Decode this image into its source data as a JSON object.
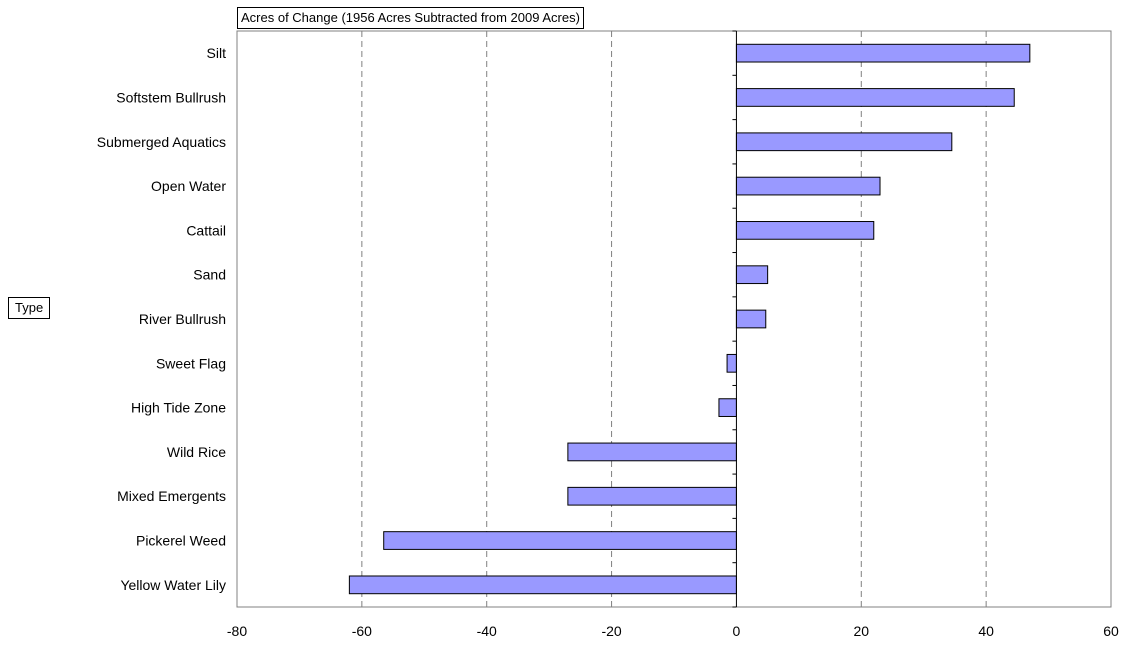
{
  "chart_data": {
    "type": "bar",
    "orientation": "horizontal",
    "title": "Acres of Change (1956 Acres Subtracted from 2009 Acres)",
    "ylabel": "Type",
    "xlabel": "",
    "xlim": [
      -80,
      60
    ],
    "x_ticks": [
      -80,
      -60,
      -40,
      -20,
      0,
      20,
      40,
      60
    ],
    "grid": "vertical-dashed",
    "bar_color": "#9999ff",
    "categories": [
      "Silt",
      "Softstem Bullrush",
      "Submerged Aquatics",
      "Open Water",
      "Cattail",
      "Sand",
      "River Bullrush",
      "Sweet Flag",
      "High Tide Zone",
      "Wild Rice",
      "Mixed Emergents",
      "Pickerel Weed",
      "Yellow Water Lily"
    ],
    "values": [
      47,
      44.5,
      34.5,
      23,
      22,
      5,
      4.7,
      -1.5,
      -2.8,
      -27,
      -27,
      -56.5,
      -62
    ]
  }
}
